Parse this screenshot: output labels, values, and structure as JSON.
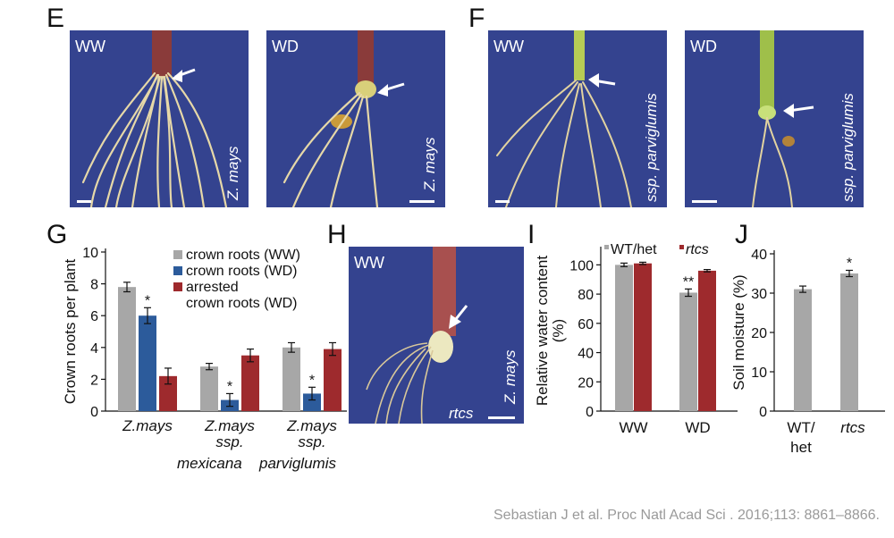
{
  "panels": {
    "E": {
      "letter": "E",
      "photos": [
        {
          "condition": "WW",
          "species": "Z. mays"
        },
        {
          "condition": "WD",
          "species": "Z. mays"
        }
      ]
    },
    "F": {
      "letter": "F",
      "photos": [
        {
          "condition": "WW",
          "species": "ssp. parviglumis"
        },
        {
          "condition": "WD",
          "species": "ssp. parviglumis"
        }
      ]
    },
    "G": {
      "letter": "G"
    },
    "H": {
      "letter": "H",
      "photo": {
        "condition": "WW",
        "species": "Z. mays",
        "genotype": "rtcs"
      }
    },
    "I": {
      "letter": "I"
    },
    "J": {
      "letter": "J"
    }
  },
  "chart_data": [
    {
      "panel": "G",
      "type": "bar",
      "ylabel": "Crown roots per plant",
      "ylim": [
        0,
        10
      ],
      "yticks": [
        "0",
        "2",
        "4",
        "6",
        "8",
        "10"
      ],
      "categories": [
        {
          "lines": [
            "Z.mays"
          ]
        },
        {
          "lines": [
            "Z.mays",
            "ssp."
          ]
        },
        {
          "lines": [
            "Z.mays",
            "ssp."
          ]
        }
      ],
      "subtitle_labels": [
        "mexicana",
        "parviglumis"
      ],
      "legend_position": "top-right",
      "series": [
        {
          "name": "crown roots (WW)",
          "color": "#a7a7a7",
          "values": [
            7.8,
            2.8,
            4.0
          ],
          "errors": [
            0.3,
            0.2,
            0.3
          ],
          "stars": [
            "",
            "",
            ""
          ]
        },
        {
          "name": "crown roots (WD)",
          "color": "#2c5b9b",
          "values": [
            6.0,
            0.7,
            1.1
          ],
          "errors": [
            0.5,
            0.4,
            0.4
          ],
          "stars": [
            "*",
            "*",
            "*"
          ]
        },
        {
          "name_lines": [
            "arrested",
            "crown roots (WD)"
          ],
          "color": "#9e2a2d",
          "values": [
            2.2,
            3.5,
            3.9
          ],
          "errors": [
            0.5,
            0.4,
            0.4
          ],
          "stars": [
            "",
            "",
            ""
          ]
        }
      ]
    },
    {
      "panel": "I",
      "type": "bar",
      "ylabel_lines": [
        "Relative water content",
        "(%)"
      ],
      "ylim": [
        0,
        110
      ],
      "yticks": [
        "0",
        "20",
        "40",
        "60",
        "80",
        "100"
      ],
      "categories": [
        "WW",
        "WD"
      ],
      "legend_position": "top",
      "series": [
        {
          "name": "WT/het",
          "color": "#a7a7a7",
          "values": [
            100,
            81
          ],
          "errors": [
            1.2,
            2.5
          ],
          "stars": [
            "",
            "**"
          ]
        },
        {
          "name": "rtcs",
          "color": "#9e2a2d",
          "values": [
            101,
            96
          ],
          "errors": [
            0.8,
            0.8
          ],
          "stars": [
            "",
            ""
          ]
        }
      ]
    },
    {
      "panel": "J",
      "type": "bar",
      "ylabel": "Soil moisture (%)",
      "ylim": [
        0,
        40
      ],
      "yticks": [
        "0",
        "10",
        "20",
        "30",
        "40"
      ],
      "categories": [
        {
          "lines": [
            "WT/",
            "het"
          ]
        },
        {
          "lines": [
            "rtcs"
          ]
        }
      ],
      "series": [
        {
          "color": "#a7a7a7",
          "values": [
            31,
            35
          ],
          "errors": [
            0.8,
            0.8
          ],
          "stars": [
            "",
            "*"
          ]
        }
      ]
    }
  ],
  "citation": "Sebastian J et al. Proc Natl Acad Sci . 2016;113: 8861–8866."
}
